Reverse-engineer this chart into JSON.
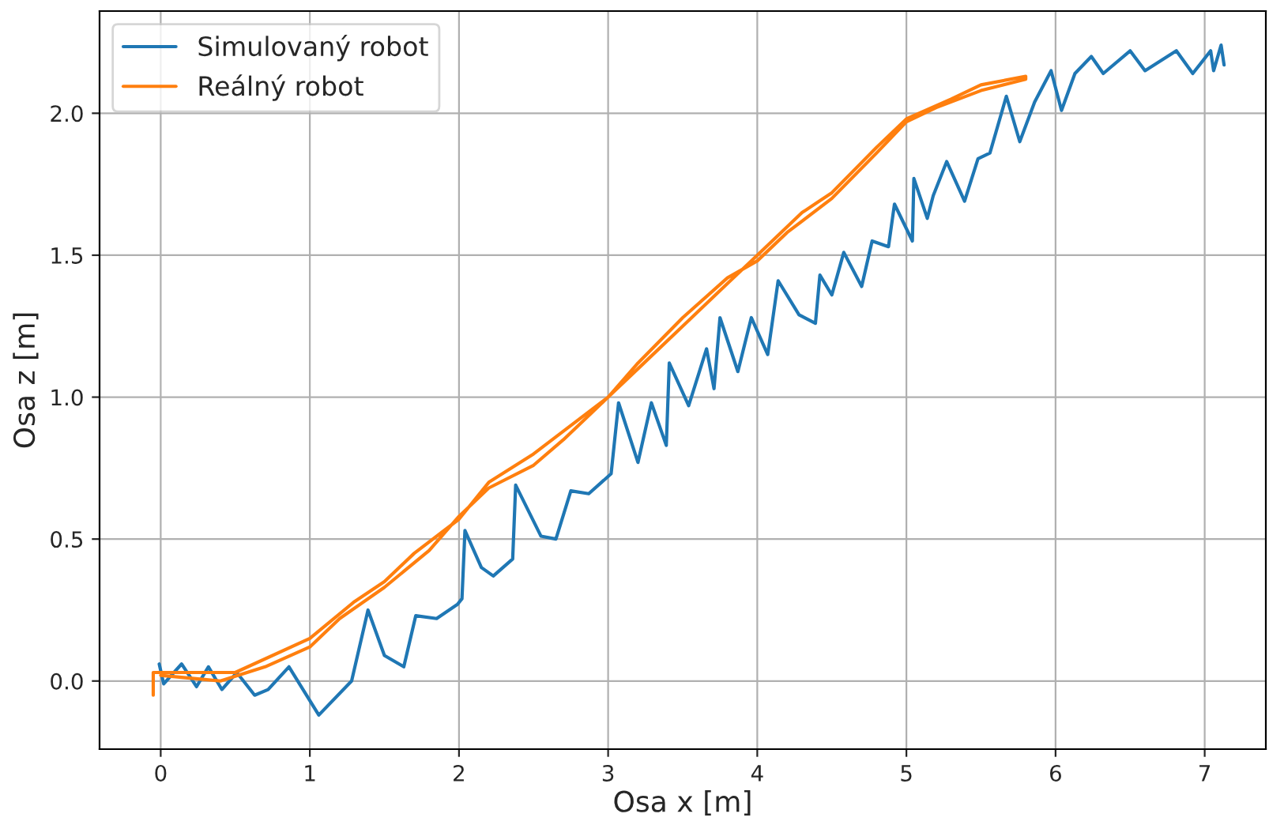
{
  "chart_data": {
    "type": "line",
    "xlabel": "Osa x [m]",
    "ylabel": "Osa z [m]",
    "xlim": [
      -0.41,
      7.41
    ],
    "ylim": [
      -0.24,
      2.36
    ],
    "xticks": [
      0,
      1,
      2,
      3,
      4,
      5,
      6,
      7
    ],
    "yticks": [
      {
        "value": 0,
        "label": "0.0"
      },
      {
        "value": 0.5,
        "label": "0.5"
      },
      {
        "value": 1,
        "label": "1.0"
      },
      {
        "value": 1.5,
        "label": "1.5"
      },
      {
        "value": 2,
        "label": "2.0"
      }
    ],
    "grid": true,
    "legend": "top left",
    "line_style": "solid",
    "marker": "none",
    "series": [
      {
        "name": "Simulovaný robot",
        "color": "#1f77b4",
        "x": [
          -0.01,
          0.02,
          0.14,
          0.24,
          0.32,
          0.41,
          0.51,
          0.63,
          0.72,
          0.86,
          1.06,
          1.28,
          1.39,
          1.5,
          1.63,
          1.71,
          1.85,
          1.99,
          2.02,
          2.04,
          2.15,
          2.23,
          2.36,
          2.38,
          2.55,
          2.65,
          2.75,
          2.87,
          3.02,
          3.07,
          3.2,
          3.29,
          3.39,
          3.41,
          3.54,
          3.66,
          3.71,
          3.75,
          3.87,
          3.96,
          4.07,
          4.14,
          4.28,
          4.39,
          4.42,
          4.5,
          4.58,
          4.7,
          4.77,
          4.88,
          4.92,
          5.04,
          5.05,
          5.14,
          5.18,
          5.27,
          5.39,
          5.48,
          5.56,
          5.67,
          5.76,
          5.86,
          5.97,
          6.04,
          6.13,
          6.24,
          6.32,
          6.5,
          6.6,
          6.81,
          6.92,
          7.04,
          7.06,
          7.11,
          7.13
        ],
        "values": [
          0.06,
          -0.01,
          0.06,
          -0.02,
          0.05,
          -0.03,
          0.03,
          -0.05,
          -0.03,
          0.05,
          -0.12,
          0.0,
          0.25,
          0.09,
          0.05,
          0.23,
          0.22,
          0.27,
          0.29,
          0.53,
          0.4,
          0.37,
          0.43,
          0.69,
          0.51,
          0.5,
          0.67,
          0.66,
          0.73,
          0.98,
          0.77,
          0.98,
          0.83,
          1.12,
          0.97,
          1.17,
          1.03,
          1.28,
          1.09,
          1.28,
          1.15,
          1.41,
          1.29,
          1.26,
          1.43,
          1.36,
          1.51,
          1.39,
          1.55,
          1.53,
          1.68,
          1.55,
          1.77,
          1.63,
          1.71,
          1.83,
          1.69,
          1.84,
          1.86,
          2.06,
          1.9,
          2.04,
          2.15,
          2.01,
          2.14,
          2.2,
          2.14,
          2.22,
          2.15,
          2.22,
          2.14,
          2.22,
          2.15,
          2.24,
          2.17
        ]
      },
      {
        "name": "Reálný robot",
        "color": "#ff7f0e",
        "x": [
          -0.05,
          -0.05,
          0.5,
          1.0,
          1.3,
          1.5,
          1.7,
          2.0,
          2.2,
          2.5,
          2.7,
          3.0,
          3.2,
          3.5,
          3.8,
          4.0,
          4.3,
          4.5,
          4.8,
          5.0,
          5.3,
          5.5,
          5.8,
          5.8,
          5.5,
          5.2,
          5.0,
          4.8,
          4.5,
          4.2,
          4.0,
          3.8,
          3.5,
          3.2,
          3.0,
          2.7,
          2.5,
          2.2,
          2.0,
          1.8,
          1.5,
          1.2,
          1.0,
          0.7,
          0.4,
          0.0
        ],
        "values": [
          -0.05,
          0.03,
          0.03,
          0.15,
          0.28,
          0.35,
          0.45,
          0.57,
          0.7,
          0.8,
          0.88,
          1.0,
          1.1,
          1.25,
          1.4,
          1.5,
          1.65,
          1.72,
          1.88,
          1.98,
          2.05,
          2.1,
          2.13,
          2.12,
          2.08,
          2.02,
          1.97,
          1.86,
          1.7,
          1.58,
          1.48,
          1.42,
          1.28,
          1.12,
          1.0,
          0.85,
          0.76,
          0.68,
          0.58,
          0.46,
          0.33,
          0.22,
          0.12,
          0.05,
          0.0,
          0.02
        ]
      }
    ]
  }
}
